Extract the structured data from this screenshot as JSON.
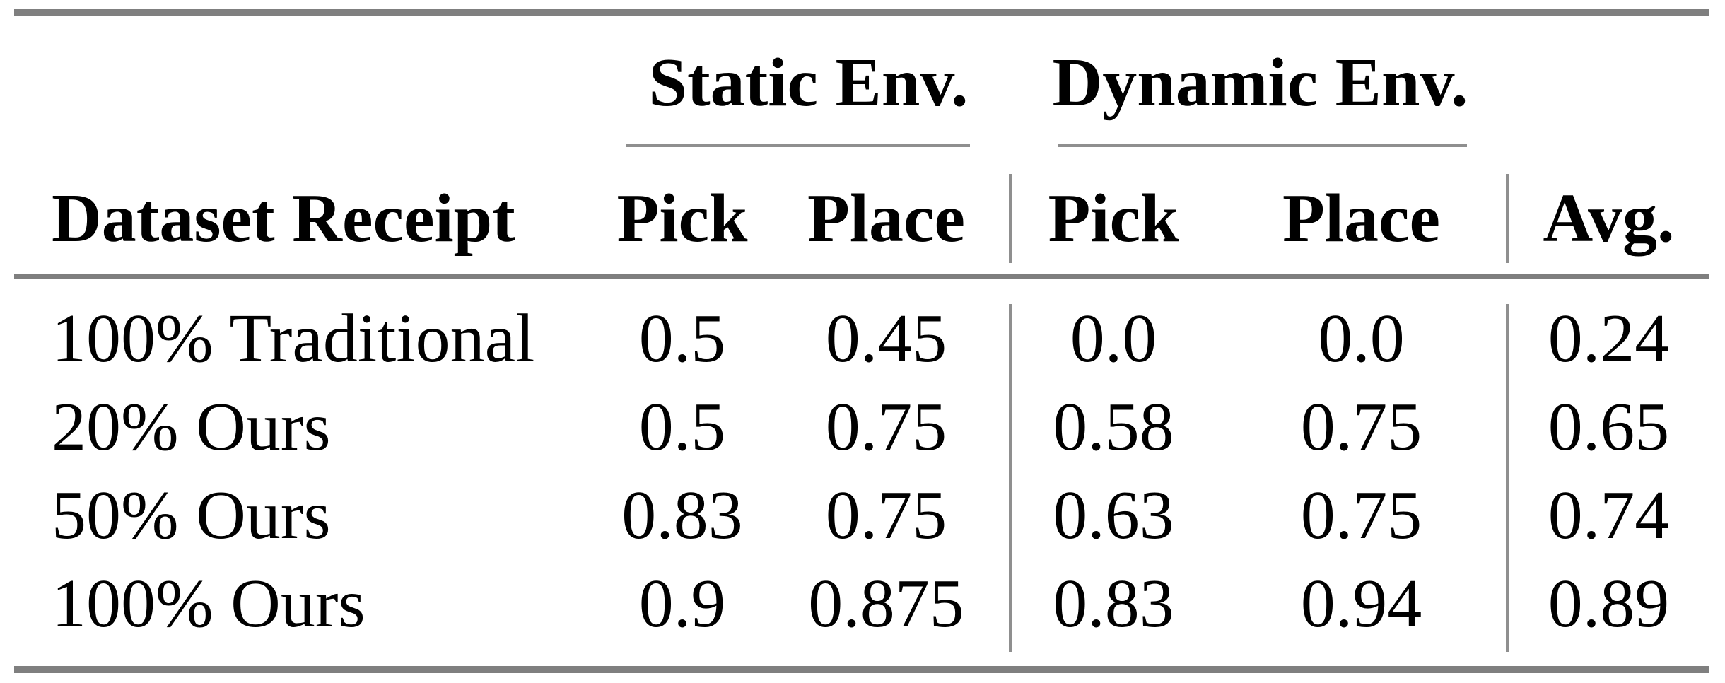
{
  "table": {
    "rule_color": "#7f7f7f",
    "thin_rule_color": "#8f8f8f",
    "group_headers": [
      {
        "label": "Static Env."
      },
      {
        "label": "Dynamic Env."
      }
    ],
    "column_headers": {
      "row_label": "Dataset Receipt",
      "static_pick": "Pick",
      "static_place": "Place",
      "dynamic_pick": "Pick",
      "dynamic_place": "Place",
      "avg": "Avg."
    },
    "rows": [
      {
        "label": "100% Traditional",
        "static_pick": "0.5",
        "static_place": "0.45",
        "dynamic_pick": "0.0",
        "dynamic_place": "0.0",
        "avg": "0.24"
      },
      {
        "label": "20% Ours",
        "static_pick": "0.5",
        "static_place": "0.75",
        "dynamic_pick": "0.58",
        "dynamic_place": "0.75",
        "avg": "0.65"
      },
      {
        "label": "50% Ours",
        "static_pick": "0.83",
        "static_place": "0.75",
        "dynamic_pick": "0.63",
        "dynamic_place": "0.75",
        "avg": "0.74"
      },
      {
        "label": "100% Ours",
        "static_pick": "0.9",
        "static_place": "0.875",
        "dynamic_pick": "0.83",
        "dynamic_place": "0.94",
        "avg": "0.89"
      }
    ]
  }
}
